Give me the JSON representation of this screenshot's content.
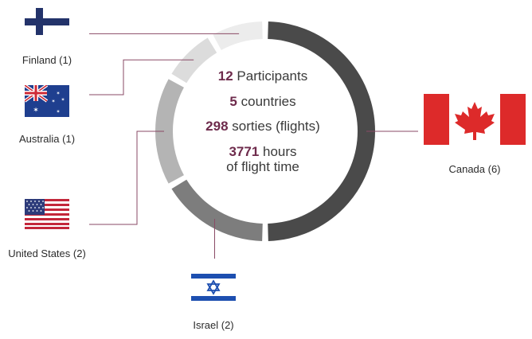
{
  "accent_color": "#6e2b4c",
  "stats": {
    "participants_num": "12",
    "participants_text": "Participants",
    "countries_num": "5",
    "countries_text": "countries",
    "sorties_num": "298",
    "sorties_text": "sorties (flights)",
    "hours_num": "3771",
    "hours_text": "hours",
    "hours_line2": "of flight time"
  },
  "chart_data": {
    "type": "pie",
    "variant": "donut",
    "title": "",
    "categories": [
      "Canada",
      "Israel",
      "United States",
      "Australia",
      "Finland"
    ],
    "values": [
      6,
      2,
      2,
      1,
      1
    ],
    "labels": [
      "Canada (6)",
      "Israel (2)",
      "United States (2)",
      "Australia (1)",
      "Finland (1)"
    ],
    "colors": [
      "#4a4a4a",
      "#7d7d7d",
      "#b4b4b4",
      "#dcdcdc",
      "#ececec"
    ],
    "total": 12
  }
}
